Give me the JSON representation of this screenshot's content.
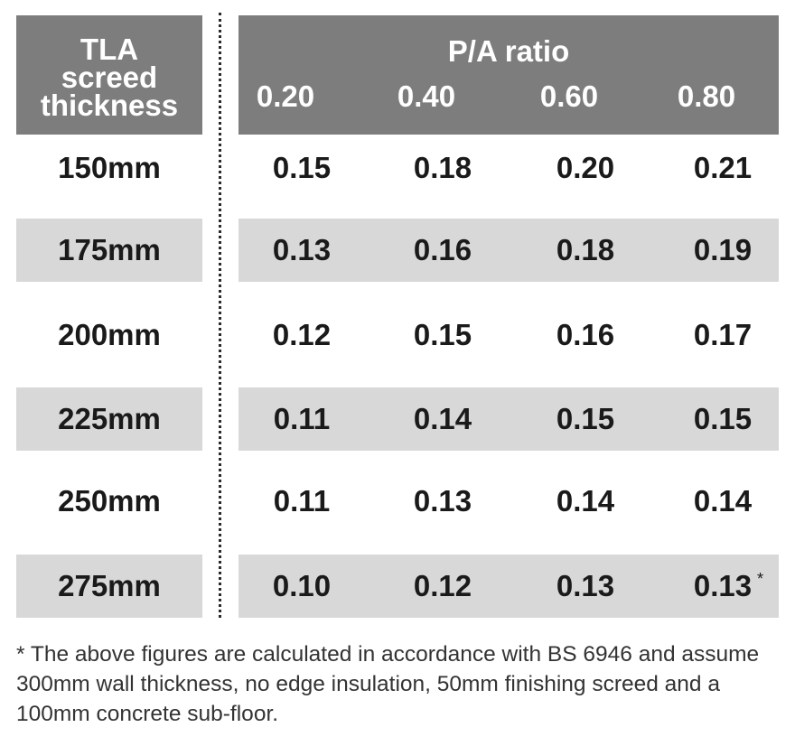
{
  "header": {
    "left_lines": [
      "TLA",
      "screed",
      "thickness"
    ],
    "right_title": "P/A ratio",
    "columns": [
      "0.20",
      "0.40",
      "0.60",
      "0.80"
    ]
  },
  "rows": [
    {
      "label": "150mm",
      "values": [
        "0.15",
        "0.18",
        "0.20",
        "0.21"
      ]
    },
    {
      "label": "175mm",
      "values": [
        "0.13",
        "0.16",
        "0.18",
        "0.19"
      ]
    },
    {
      "label": "200mm",
      "values": [
        "0.12",
        "0.15",
        "0.16",
        "0.17"
      ]
    },
    {
      "label": "225mm",
      "values": [
        "0.11",
        "0.14",
        "0.15",
        "0.15"
      ]
    },
    {
      "label": "250mm",
      "values": [
        "0.11",
        "0.13",
        "0.14",
        "0.14"
      ]
    },
    {
      "label": "275mm",
      "values": [
        "0.10",
        "0.12",
        "0.13",
        "0.13"
      ]
    }
  ],
  "marker": "*",
  "footnote": "* The above figures are calculated in accordance with BS 6946 and assume 300mm wall thickness, no edge insulation, 50mm finishing screed and a 100mm concrete sub-floor.",
  "colors": {
    "header_bg": "#7d7d7d",
    "header_text": "#ffffff",
    "shaded_row": "#d8d8d8",
    "body_text": "#1a1a1a"
  }
}
